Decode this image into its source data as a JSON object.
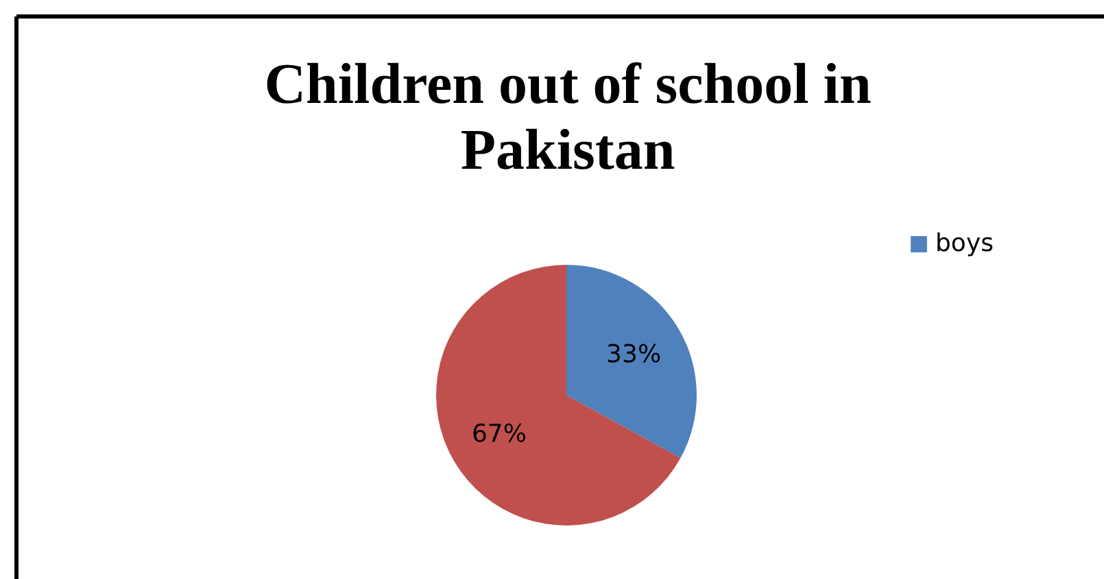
{
  "chart_data": {
    "type": "pie",
    "title": "Children out of school in Pakistan",
    "categories": [
      "boys",
      null
    ],
    "values": [
      33,
      67
    ],
    "colors": [
      "#4f81bd",
      "#c0504d"
    ],
    "value_labels": [
      "33%",
      "67%"
    ],
    "legend": "top right"
  }
}
